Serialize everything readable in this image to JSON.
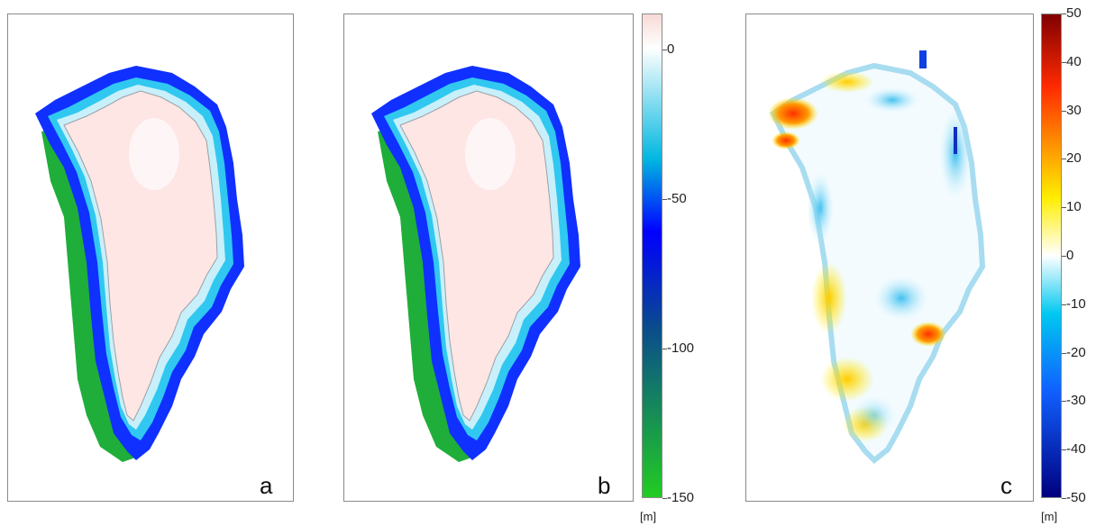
{
  "panels": [
    {
      "letter": "a"
    },
    {
      "letter": "b"
    },
    {
      "letter": "c"
    }
  ],
  "colorbar_ab": {
    "ticks": [
      0,
      -50,
      -100,
      -150
    ],
    "tick_labels": [
      "0",
      "-50",
      "-100",
      "-150"
    ],
    "range": [
      -150,
      12
    ],
    "unit": "[m]",
    "colors": {
      "top": "#f7d9d6",
      "zero": "#ffffff",
      "mid": "#00b7e0",
      "deep": "#0000ff",
      "dark": "#0a4c8c",
      "bottom": "#22cc22"
    }
  },
  "colorbar_c": {
    "ticks": [
      50,
      40,
      30,
      20,
      10,
      0,
      -10,
      -20,
      -30,
      -40,
      -50
    ],
    "tick_labels": [
      "50",
      "40",
      "30",
      "20",
      "10",
      "0",
      "-10",
      "-20",
      "-30",
      "-40",
      "-50"
    ],
    "range": [
      -50,
      50
    ],
    "unit": "[m]",
    "colors": {
      "top": "#800000",
      "red": "#ff2a00",
      "orange": "#ff9a00",
      "yellow": "#ffee00",
      "zero": "#ffffff",
      "cyan": "#00c8f0",
      "blue": "#1060ff",
      "bottom": "#00007f"
    }
  }
}
